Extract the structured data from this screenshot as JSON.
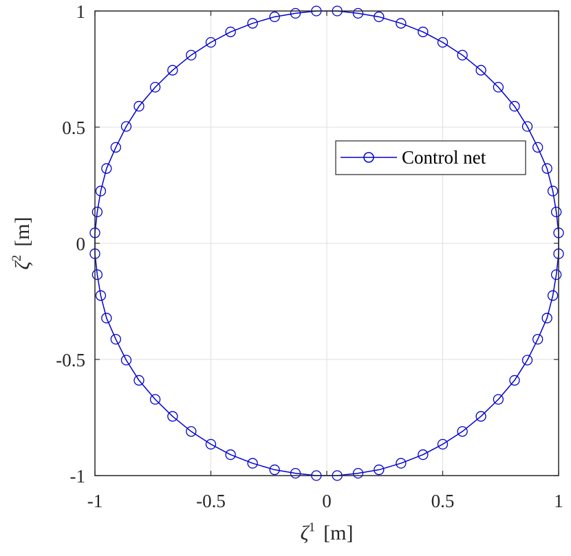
{
  "chart_data": {
    "type": "line",
    "xlabel": {
      "symbol": "ζ",
      "sup": "1",
      "unit": "[m]"
    },
    "ylabel": {
      "symbol": "ζ",
      "sup": "2",
      "unit": "[m]"
    },
    "xlim": [
      -1,
      1
    ],
    "ylim": [
      -1,
      1
    ],
    "xticks": [
      -1,
      -0.5,
      0,
      0.5,
      1
    ],
    "yticks": [
      -1,
      -0.5,
      0,
      0.5,
      1
    ],
    "xtick_labels": [
      "-1",
      "-0.5",
      "0",
      "0.5",
      "1"
    ],
    "ytick_labels": [
      "-1",
      "-0.5",
      "0",
      "0.5",
      "1"
    ],
    "grid": true,
    "legend_position": "right",
    "series": [
      {
        "name": "Control net",
        "color": "#0000cd",
        "marker": "circle",
        "points": [
          [
            0.045,
            1.0
          ],
          [
            0.135,
            0.99
          ],
          [
            0.225,
            0.975
          ],
          [
            0.32,
            0.947
          ],
          [
            0.415,
            0.91
          ],
          [
            0.5,
            0.865
          ],
          [
            0.585,
            0.81
          ],
          [
            0.665,
            0.745
          ],
          [
            0.74,
            0.672
          ],
          [
            0.81,
            0.59
          ],
          [
            0.865,
            0.503
          ],
          [
            0.91,
            0.413
          ],
          [
            0.95,
            0.322
          ],
          [
            0.975,
            0.225
          ],
          [
            0.99,
            0.135
          ],
          [
            1.0,
            0.045
          ],
          [
            1.0,
            -0.045
          ],
          [
            0.99,
            -0.135
          ],
          [
            0.975,
            -0.225
          ],
          [
            0.95,
            -0.322
          ],
          [
            0.91,
            -0.413
          ],
          [
            0.865,
            -0.503
          ],
          [
            0.81,
            -0.59
          ],
          [
            0.74,
            -0.672
          ],
          [
            0.665,
            -0.745
          ],
          [
            0.585,
            -0.81
          ],
          [
            0.5,
            -0.865
          ],
          [
            0.415,
            -0.91
          ],
          [
            0.32,
            -0.947
          ],
          [
            0.225,
            -0.975
          ],
          [
            0.135,
            -0.99
          ],
          [
            0.045,
            -1.0
          ],
          [
            -0.045,
            -1.0
          ],
          [
            -0.135,
            -0.99
          ],
          [
            -0.225,
            -0.975
          ],
          [
            -0.32,
            -0.947
          ],
          [
            -0.415,
            -0.91
          ],
          [
            -0.5,
            -0.865
          ],
          [
            -0.585,
            -0.81
          ],
          [
            -0.665,
            -0.745
          ],
          [
            -0.74,
            -0.672
          ],
          [
            -0.81,
            -0.59
          ],
          [
            -0.865,
            -0.503
          ],
          [
            -0.91,
            -0.413
          ],
          [
            -0.95,
            -0.322
          ],
          [
            -0.975,
            -0.225
          ],
          [
            -0.99,
            -0.135
          ],
          [
            -1.0,
            -0.045
          ],
          [
            -1.0,
            0.045
          ],
          [
            -0.99,
            0.135
          ],
          [
            -0.975,
            0.225
          ],
          [
            -0.95,
            0.322
          ],
          [
            -0.91,
            0.413
          ],
          [
            -0.865,
            0.503
          ],
          [
            -0.81,
            0.59
          ],
          [
            -0.74,
            0.672
          ],
          [
            -0.665,
            0.745
          ],
          [
            -0.585,
            0.81
          ],
          [
            -0.5,
            0.865
          ],
          [
            -0.415,
            0.91
          ],
          [
            -0.32,
            0.947
          ],
          [
            -0.225,
            0.975
          ],
          [
            -0.135,
            0.99
          ],
          [
            -0.045,
            1.0
          ]
        ]
      }
    ]
  }
}
